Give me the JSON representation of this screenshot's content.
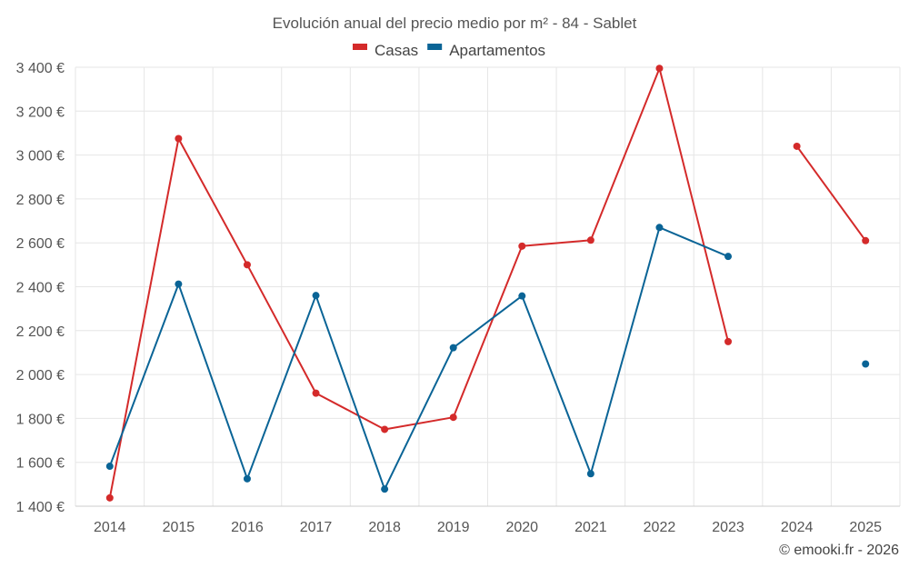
{
  "chart_data": {
    "type": "line",
    "title": "Evolución anual del precio medio por m² - 84 - Sablet",
    "categories": [
      "2014",
      "2015",
      "2016",
      "2017",
      "2018",
      "2019",
      "2020",
      "2021",
      "2022",
      "2023",
      "2024",
      "2025"
    ],
    "series": [
      {
        "name": "Casas",
        "color": "#d42a2a",
        "values": [
          1438,
          3075,
          2500,
          1915,
          1750,
          1805,
          2585,
          2612,
          3395,
          2150,
          3040,
          2610
        ]
      },
      {
        "name": "Apartamentos",
        "color": "#0a6496",
        "values": [
          1582,
          2412,
          1525,
          null,
          1478,
          2122,
          2358,
          1548,
          2670,
          2538,
          null,
          2048
        ]
      }
    ],
    "series_extra": {
      "Apartamentos_2017": 2360
    },
    "ylim": [
      1400,
      3400
    ],
    "yticks": [
      1400,
      1600,
      1800,
      2000,
      2200,
      2400,
      2600,
      2800,
      3000,
      3200,
      3400
    ],
    "ytick_labels": [
      "1 400 €",
      "1 600 €",
      "1 800 €",
      "2 000 €",
      "2 200 €",
      "2 400 €",
      "2 600 €",
      "2 800 €",
      "3 000 €",
      "3 200 €",
      "3 400 €"
    ],
    "xlabel": "",
    "ylabel": "",
    "legend_position": "top-center",
    "grid": true
  },
  "credit": "© emooki.fr - 2026"
}
